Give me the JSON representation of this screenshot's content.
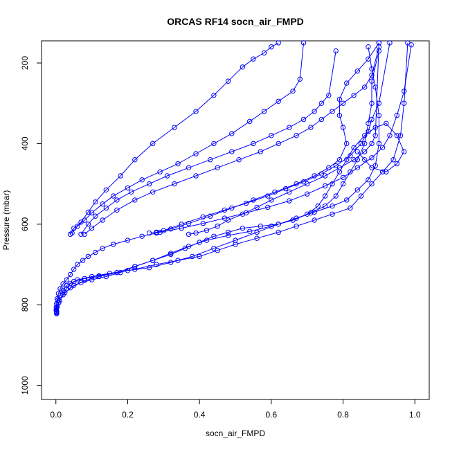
{
  "chart_data": {
    "type": "scatter",
    "title": "ORCAS RF14 socn_air_FMPD",
    "xlabel": "socn_air_FMPD",
    "ylabel": "Pressure (mbar)",
    "xlim": [
      -0.04,
      1.04
    ],
    "ylim": [
      1035,
      145
    ],
    "y_reversed": true,
    "x_ticks": [
      "0.0",
      "0.2",
      "0.4",
      "0.6",
      "0.8",
      "1.0"
    ],
    "y_ticks": [
      "200",
      "400",
      "600",
      "800",
      "1000"
    ],
    "color": "#0000ff",
    "marker": "open-circle",
    "grid": false,
    "series": [
      {
        "x": [
          0.002,
          0.001,
          0.001,
          0.002,
          0.004,
          0.007,
          0.012,
          0.02,
          0.03,
          0.04,
          0.05,
          0.06,
          0.075,
          0.09,
          0.11,
          0.13,
          0.16,
          0.2,
          0.24,
          0.29,
          0.35,
          0.41,
          0.47,
          0.53,
          0.59,
          0.65,
          0.7,
          0.75,
          0.8,
          0.84,
          0.88,
          0.91,
          0.93,
          0.95,
          0.97,
          0.99
        ],
        "y": [
          822,
          815,
          806,
          797,
          785,
          772,
          760,
          748,
          738,
          725,
          712,
          700,
          690,
          680,
          670,
          660,
          650,
          640,
          630,
          620,
          610,
          598,
          585,
          572,
          558,
          542,
          525,
          505,
          484,
          460,
          435,
          410,
          380,
          330,
          270,
          155
        ]
      },
      {
        "x": [
          0.002,
          0.001,
          0.003,
          0.006,
          0.012,
          0.02,
          0.03,
          0.05,
          0.08,
          0.12,
          0.17,
          0.22,
          0.28,
          0.34,
          0.4,
          0.45,
          0.5,
          0.56,
          0.62,
          0.67,
          0.72,
          0.77,
          0.82,
          0.85,
          0.88,
          0.91,
          0.94,
          0.96,
          0.97,
          0.98
        ],
        "y": [
          820,
          812,
          800,
          788,
          776,
          764,
          752,
          742,
          735,
          728,
          720,
          712,
          700,
          690,
          680,
          665,
          650,
          635,
          620,
          605,
          590,
          575,
          560,
          530,
          500,
          470,
          440,
          380,
          300,
          150
        ]
      },
      {
        "x": [
          0.002,
          0.004,
          0.01,
          0.02,
          0.03,
          0.04,
          0.06,
          0.1,
          0.15,
          0.2,
          0.26,
          0.32,
          0.38,
          0.44,
          0.5,
          0.56,
          0.62,
          0.67,
          0.72,
          0.77,
          0.81,
          0.84,
          0.87,
          0.89,
          0.9,
          0.9,
          0.89,
          0.88,
          0.87
        ],
        "y": [
          818,
          805,
          790,
          775,
          760,
          748,
          738,
          730,
          722,
          715,
          708,
          695,
          680,
          660,
          640,
          620,
          600,
          585,
          570,
          555,
          540,
          515,
          490,
          455,
          400,
          330,
          260,
          215,
          160
        ]
      },
      {
        "x": [
          0.002,
          0.008,
          0.02,
          0.04,
          0.07,
          0.1,
          0.14,
          0.18,
          0.22,
          0.27,
          0.32,
          0.37,
          0.42,
          0.48,
          0.54,
          0.6,
          0.66,
          0.71,
          0.75,
          0.78,
          0.8,
          0.82,
          0.84,
          0.86,
          0.87,
          0.88,
          0.88,
          0.9
        ],
        "y": [
          816,
          795,
          775,
          758,
          745,
          738,
          730,
          720,
          705,
          690,
          672,
          655,
          640,
          628,
          618,
          605,
          590,
          572,
          555,
          530,
          500,
          470,
          440,
          400,
          350,
          300,
          245,
          170
        ]
      },
      {
        "x": [
          0.001,
          0.01,
          0.025,
          0.05,
          0.08,
          0.12,
          0.17,
          0.22,
          0.27,
          0.32,
          0.36,
          0.4,
          0.44,
          0.48,
          0.52,
          0.57,
          0.62,
          0.66,
          0.7,
          0.73,
          0.75,
          0.77,
          0.79,
          0.81,
          0.83,
          0.86,
          0.89,
          0.92,
          0.95,
          0.97,
          0.95,
          0.92,
          0.88,
          0.86,
          0.84
        ],
        "y": [
          812,
          790,
          770,
          752,
          740,
          730,
          720,
          705,
          690,
          675,
          660,
          645,
          630,
          620,
          610,
          605,
          600,
          590,
          575,
          555,
          530,
          500,
          470,
          440,
          410,
          380,
          360,
          350,
          380,
          420,
          450,
          470,
          460,
          440,
          420
        ]
      }
    ],
    "profiles": [
      {
        "x": [
          0.04,
          0.05,
          0.07,
          0.09,
          0.11,
          0.14,
          0.18,
          0.22,
          0.27,
          0.33,
          0.39,
          0.44,
          0.48,
          0.52,
          0.55,
          0.58,
          0.6,
          0.62
        ],
        "y": [
          625,
          610,
          595,
          570,
          545,
          515,
          480,
          440,
          400,
          360,
          320,
          280,
          245,
          210,
          190,
          175,
          160,
          150
        ]
      },
      {
        "x": [
          0.045,
          0.06,
          0.08,
          0.1,
          0.13,
          0.16,
          0.2,
          0.24,
          0.29,
          0.34,
          0.39,
          0.44,
          0.49,
          0.54,
          0.58,
          0.62,
          0.66,
          0.68,
          0.69
        ],
        "y": [
          622,
          605,
          590,
          572,
          550,
          530,
          510,
          490,
          470,
          450,
          425,
          400,
          375,
          345,
          320,
          295,
          270,
          240,
          150
        ]
      },
      {
        "x": [
          0.07,
          0.09,
          0.11,
          0.14,
          0.17,
          0.21,
          0.26,
          0.31,
          0.37,
          0.43,
          0.49,
          0.55,
          0.6,
          0.65,
          0.69,
          0.72,
          0.74,
          0.76,
          0.78
        ],
        "y": [
          625,
          600,
          580,
          560,
          540,
          520,
          500,
          480,
          460,
          440,
          420,
          400,
          380,
          360,
          340,
          320,
          300,
          280,
          170
        ]
      },
      {
        "x": [
          0.08,
          0.1,
          0.13,
          0.17,
          0.22,
          0.27,
          0.33,
          0.39,
          0.45,
          0.51,
          0.57,
          0.62,
          0.67,
          0.71,
          0.74,
          0.77,
          0.8,
          0.83,
          0.86,
          0.88,
          0.9
        ],
        "y": [
          625,
          610,
          590,
          565,
          540,
          520,
          500,
          480,
          460,
          440,
          420,
          400,
          380,
          360,
          340,
          320,
          300,
          280,
          260,
          230,
          160
        ]
      },
      {
        "x": [
          0.26,
          0.28,
          0.32,
          0.37,
          0.43,
          0.49,
          0.55,
          0.61,
          0.67,
          0.72,
          0.76,
          0.79,
          0.81,
          0.8,
          0.79,
          0.79,
          0.81,
          0.84,
          0.87,
          0.9
        ],
        "y": [
          622,
          620,
          612,
          598,
          580,
          560,
          540,
          520,
          500,
          480,
          460,
          440,
          400,
          360,
          330,
          290,
          250,
          220,
          190,
          150
        ]
      },
      {
        "x": [
          0.28,
          0.3,
          0.35,
          0.41,
          0.47,
          0.53,
          0.59,
          0.64,
          0.69,
          0.74,
          0.78,
          0.82,
          0.85,
          0.87,
          0.88,
          0.9,
          0.93
        ],
        "y": [
          622,
          616,
          600,
          582,
          565,
          548,
          530,
          512,
          495,
          475,
          455,
          430,
          400,
          370,
          340,
          300,
          150
        ]
      },
      {
        "x": [
          0.37,
          0.39,
          0.42,
          0.45,
          0.48,
          0.52,
          0.56,
          0.6,
          0.65,
          0.7,
          0.75,
          0.79,
          0.83,
          0.86,
          0.88,
          0.89,
          0.9
        ],
        "y": [
          625,
          622,
          615,
          605,
          590,
          575,
          558,
          540,
          520,
          500,
          480,
          460,
          440,
          420,
          400,
          380,
          150
        ]
      }
    ]
  }
}
